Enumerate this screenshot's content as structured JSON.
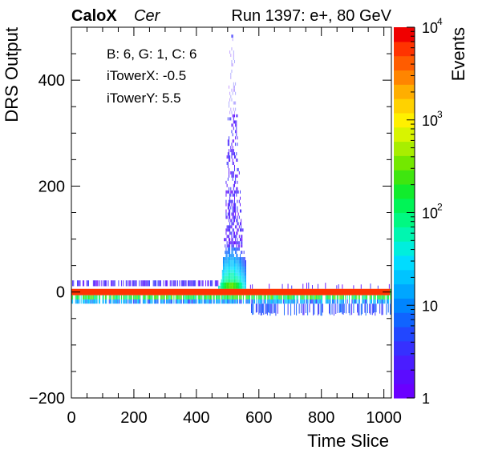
{
  "header": {
    "brand": "CaloX",
    "channel": "Cer",
    "run_info": "Run 1397: e+, 80 GeV"
  },
  "info_box": {
    "line1": "B: 6, G: 1, C: 6",
    "line2": "iTowerX: -0.5",
    "line3": "iTowerY: 5.5"
  },
  "chart_data": {
    "type": "heatmap",
    "title": "",
    "xlabel": "Time Slice",
    "ylabel": "DRS Output",
    "zlabel": "Events",
    "xlim": [
      0,
      1024
    ],
    "ylim": [
      -200,
      500
    ],
    "zlim": [
      1,
      10000
    ],
    "z_log": true,
    "x_ticks": [
      0,
      200,
      400,
      600,
      800,
      1000
    ],
    "y_ticks": [
      -200,
      0,
      200,
      400
    ],
    "z_tick_labels": [
      {
        "value": 1,
        "base": "1",
        "exp": ""
      },
      {
        "value": 10,
        "base": "10",
        "exp": ""
      },
      {
        "value": 100,
        "base": "10",
        "exp": "2"
      },
      {
        "value": 1000,
        "base": "10",
        "exp": "3"
      },
      {
        "value": 10000,
        "base": "10",
        "exp": "4"
      }
    ],
    "palette": [
      "#6a00ff",
      "#5b0cff",
      "#4a1dff",
      "#3630ff",
      "#2247ff",
      "#1064ff",
      "#0085ff",
      "#00a6ff",
      "#00c4ff",
      "#00dcff",
      "#00eedd",
      "#00f6b0",
      "#00f882",
      "#00f456",
      "#11ec2c",
      "#3fe60f",
      "#73e800",
      "#a8ee00",
      "#d8f400",
      "#fff000",
      "#ffd200",
      "#ffae00",
      "#ff8500",
      "#ff5c00",
      "#ff3300",
      "#f00000"
    ],
    "regions": [
      {
        "name": "baseline-core",
        "x": [
          0,
          1024
        ],
        "y": [
          -6,
          6
        ],
        "z": 5000
      },
      {
        "name": "baseline-upper-band",
        "x": [
          0,
          470
        ],
        "y": [
          6,
          22
        ],
        "z": 3
      },
      {
        "name": "baseline-lower-band",
        "x": [
          0,
          1024
        ],
        "y": [
          -22,
          -6
        ],
        "z": 50
      },
      {
        "name": "baseline-lower-tail",
        "x": [
          575,
          1024
        ],
        "y": [
          -45,
          -22
        ],
        "z": 4
      },
      {
        "name": "pulse-peak",
        "x": [
          470,
          560
        ],
        "y": [
          6,
          500
        ],
        "z": 200,
        "peak_x": 510
      }
    ]
  }
}
